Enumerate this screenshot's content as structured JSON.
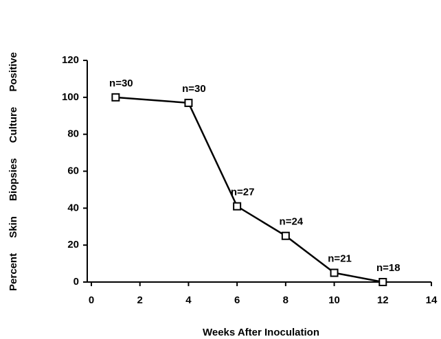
{
  "chart_data": {
    "type": "line",
    "xlabel": "Weeks After Inoculation",
    "ylabel": "Percent Skin Biopsies Culture Positive",
    "x": [
      1,
      4,
      6,
      8,
      10,
      12
    ],
    "series": [
      {
        "name": "Culture positive",
        "color": "#000000",
        "values": [
          100,
          97,
          41,
          25,
          5,
          0
        ]
      }
    ],
    "annotations": [
      "n=30",
      "n=30",
      "n=27",
      "n=24",
      "n=21",
      "n=18"
    ],
    "xlim": [
      0,
      14
    ],
    "xticks": [
      0,
      2,
      4,
      6,
      8,
      10,
      12,
      14
    ],
    "ylim": [
      0,
      120
    ],
    "yticks": [
      0,
      20,
      40,
      60,
      80,
      100,
      120
    ],
    "marker": "square",
    "grid": false
  }
}
